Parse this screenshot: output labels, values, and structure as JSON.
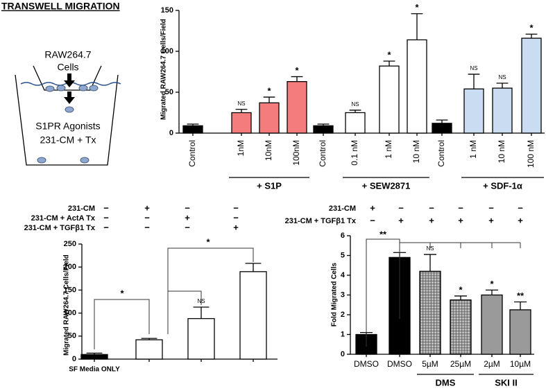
{
  "diagram": {
    "title": "TRANSWELL MIGRATION",
    "cells_label": [
      "RAW264.7",
      "Cells"
    ],
    "media_label": [
      "S1PR Agonists",
      "231-CM + Tx"
    ]
  },
  "chart_data": [
    {
      "type": "bar",
      "y_label": "Migrated RAW264.7 Cells/Field",
      "categories": [
        "Control",
        "1nM",
        "10nM",
        "100nM",
        "Control",
        "0.1 nM",
        "1 nM",
        "10 nM",
        "Control",
        "1 nM",
        "10 nM",
        "100 nM"
      ],
      "values": [
        9,
        25,
        37,
        63,
        9,
        25,
        82,
        114,
        12,
        54,
        55,
        116
      ],
      "errors": [
        2,
        4,
        7,
        6,
        2,
        3,
        6,
        32,
        4,
        18,
        6,
        5
      ],
      "colors": [
        "#000000",
        "#f47c7c",
        "#f47c7c",
        "#f47c7c",
        "#000000",
        "#ffffff",
        "#ffffff",
        "#ffffff",
        "#000000",
        "#c9dcf2",
        "#c9dcf2",
        "#c9dcf2"
      ],
      "significance": [
        null,
        "NS",
        "*",
        "*",
        null,
        "NS",
        "*",
        "*",
        null,
        "NS",
        "NS",
        "*"
      ],
      "group_labels": [
        "+ S1P",
        "+ SEW2871",
        "+ SDF-1α"
      ],
      "ylim": [
        0,
        150
      ],
      "yticks": [
        0,
        50,
        100,
        150
      ]
    },
    {
      "type": "bar",
      "y_label": "Migrated RAW264.7 Cells/Field",
      "categories": [
        "SF Media ONLY",
        null,
        null,
        null
      ],
      "values": [
        10,
        42,
        88,
        190
      ],
      "errors": [
        3,
        3,
        25,
        18
      ],
      "colors": [
        "#000000",
        "#ffffff",
        "#ffffff",
        "#ffffff"
      ],
      "significance": [
        null,
        null,
        "NS",
        null
      ],
      "bracket_labels": [
        "*",
        "*"
      ],
      "conditions": [
        {
          "label": "231-CM",
          "signs": [
            "−",
            "+",
            "−",
            "−"
          ]
        },
        {
          "label": "231-CM + ActA Tx",
          "signs": [
            "−",
            "−",
            "+",
            "−"
          ]
        },
        {
          "label": "231-CM + TGFβ1 Tx",
          "signs": [
            "−",
            "−",
            "−",
            "+"
          ]
        }
      ],
      "ylim": [
        0,
        250
      ],
      "yticks": [
        0,
        50,
        100,
        150,
        200,
        250
      ]
    },
    {
      "type": "bar",
      "y_label": "Fold Migrated Cells",
      "categories": [
        "DMSO",
        "DMSO",
        "5µM",
        "25µM",
        "2µM",
        "10µM"
      ],
      "values": [
        1.0,
        4.9,
        4.2,
        2.75,
        3.0,
        2.25
      ],
      "errors": [
        0.1,
        0.25,
        0.85,
        0.2,
        0.25,
        0.4
      ],
      "colors": [
        "#000000",
        "#000000",
        "hatch",
        "hatch",
        "#9a9a9a",
        "#9a9a9a"
      ],
      "significance": [
        null,
        null,
        "NS",
        "*",
        "*",
        "**"
      ],
      "bracket_labels": [
        "**"
      ],
      "group_labels": [
        "DMS",
        "SKI II"
      ],
      "conditions": [
        {
          "label": "231-CM",
          "signs": [
            "+",
            "−",
            "−",
            "−",
            "−",
            "−"
          ]
        },
        {
          "label": "231-CM + TGFβ1 Tx",
          "signs": [
            "−",
            "+",
            "+",
            "+",
            "+",
            "+"
          ]
        }
      ],
      "ylim": [
        0,
        6
      ],
      "yticks": [
        0,
        1,
        2,
        3,
        4,
        5,
        6
      ]
    }
  ]
}
